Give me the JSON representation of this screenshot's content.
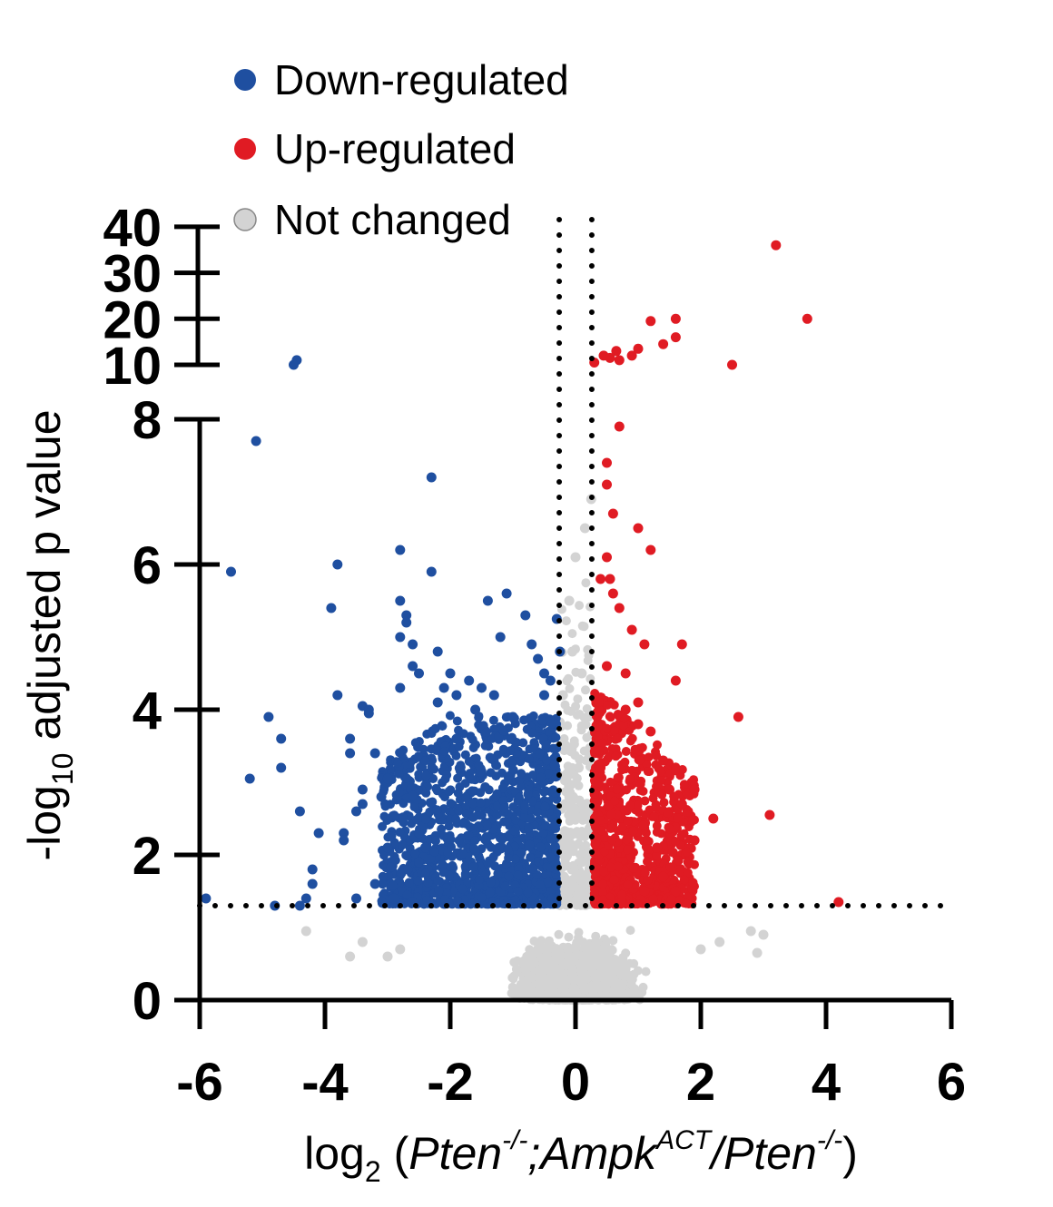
{
  "colors": {
    "down": "#1f4fa0",
    "up": "#e01b23",
    "unchanged": "#d3d3d3",
    "axis": "#000000"
  },
  "legend": {
    "down_label": "Down-regulated",
    "up_label": "Up-regulated",
    "unchanged_label": "Not changed"
  },
  "axes": {
    "ylabel_main": "-log",
    "ylabel_sub": "10",
    "ylabel_rest": " adjusted p value",
    "xlabel_log": "log",
    "xlabel_sub": "2",
    "xlabel_open": " (",
    "xlabel_pten1": "Pten",
    "xlabel_sup1": "-/-",
    "xlabel_mid": ";Ampk",
    "xlabel_sup2": "ACT",
    "xlabel_slash": "/Pten",
    "xlabel_sup3": "-/-",
    "xlabel_close": ")"
  },
  "chart_data": {
    "type": "scatter",
    "subtype": "volcano",
    "xlim": [
      -6,
      6
    ],
    "ylim_lower": [
      0,
      8
    ],
    "ylim_upper": [
      10,
      40
    ],
    "y_axis_broken": true,
    "x_ticks": [
      "-6",
      "-4",
      "-2",
      "0",
      "2",
      "4",
      "6"
    ],
    "y_ticks_lower": [
      "0",
      "2",
      "4",
      "6",
      "8"
    ],
    "y_ticks_upper": [
      "10",
      "20",
      "30",
      "40"
    ],
    "thresholds": {
      "log2fc": [
        -0.26,
        0.26
      ],
      "neglog10_padj": 1.3
    },
    "legend_position": "top",
    "series": [
      {
        "name": "Down-regulated",
        "color": "#1f4fa0",
        "points": [
          [
            -5.9,
            1.4
          ],
          [
            -5.5,
            5.9
          ],
          [
            -5.2,
            3.05
          ],
          [
            -5.1,
            7.7
          ],
          [
            -4.9,
            3.9
          ],
          [
            -4.8,
            1.3
          ],
          [
            -4.7,
            3.2
          ],
          [
            -4.7,
            3.6
          ],
          [
            -4.4,
            2.6
          ],
          [
            -4.4,
            1.3
          ],
          [
            -4.3,
            1.4
          ],
          [
            -4.2,
            1.6
          ],
          [
            -4.2,
            1.8
          ],
          [
            -4.1,
            2.3
          ],
          [
            -3.9,
            5.4
          ],
          [
            -3.8,
            6.0
          ],
          [
            -3.8,
            4.2
          ],
          [
            -3.7,
            2.3
          ],
          [
            -3.7,
            2.2
          ],
          [
            -3.6,
            3.6
          ],
          [
            -3.6,
            3.4
          ],
          [
            -3.5,
            1.4
          ],
          [
            -3.5,
            2.6
          ],
          [
            -3.4,
            2.9
          ],
          [
            -3.4,
            2.7
          ],
          [
            -3.4,
            4.05
          ],
          [
            -3.3,
            4.0
          ],
          [
            -3.3,
            3.95
          ],
          [
            -3.2,
            3.4
          ],
          [
            -3.2,
            1.6
          ],
          [
            -3.1,
            2.8
          ],
          [
            -3.0,
            3.05
          ],
          [
            -3.0,
            2.1
          ],
          [
            -2.9,
            1.4
          ],
          [
            -2.8,
            6.2
          ],
          [
            -2.8,
            5.5
          ],
          [
            -2.8,
            5.0
          ],
          [
            -2.8,
            4.3
          ],
          [
            -2.7,
            5.3
          ],
          [
            -2.7,
            5.2
          ],
          [
            -2.6,
            4.9
          ],
          [
            -2.6,
            4.6
          ],
          [
            -2.5,
            4.5
          ],
          [
            -2.5,
            2.3
          ],
          [
            -2.5,
            1.9
          ],
          [
            -2.4,
            2.1
          ],
          [
            -2.3,
            7.2
          ],
          [
            -2.3,
            5.9
          ],
          [
            -2.2,
            4.8
          ],
          [
            -2.2,
            4.1
          ],
          [
            -2.1,
            4.3
          ],
          [
            -2.0,
            4.5
          ],
          [
            -1.9,
            4.2
          ],
          [
            -1.9,
            3.6
          ],
          [
            -1.7,
            4.4
          ],
          [
            -1.6,
            4.0
          ],
          [
            -1.5,
            4.3
          ],
          [
            -1.4,
            5.5
          ],
          [
            -1.3,
            4.2
          ],
          [
            -1.2,
            5.0
          ],
          [
            -1.1,
            5.6
          ],
          [
            -1.0,
            3.9
          ],
          [
            -0.8,
            5.3
          ],
          [
            -0.7,
            4.9
          ],
          [
            -0.6,
            4.7
          ],
          [
            -0.5,
            4.5
          ],
          [
            -0.4,
            4.4
          ],
          [
            -0.5,
            4.2
          ],
          [
            -0.3,
            5.25
          ],
          [
            -0.25,
            4.8
          ],
          [
            -4.45,
            11.0
          ],
          [
            -4.5,
            10.0
          ]
        ]
      },
      {
        "name": "Up-regulated",
        "color": "#e01b23",
        "points": [
          [
            0.3,
            10.5
          ],
          [
            0.45,
            12.0
          ],
          [
            0.55,
            11.5
          ],
          [
            0.65,
            13.0
          ],
          [
            0.7,
            11.0
          ],
          [
            0.9,
            12.0
          ],
          [
            1.0,
            13.5
          ],
          [
            1.2,
            19.5
          ],
          [
            1.4,
            14.5
          ],
          [
            1.6,
            20.0
          ],
          [
            1.6,
            16.0
          ],
          [
            2.5,
            10.0
          ],
          [
            3.2,
            36.0
          ],
          [
            3.7,
            20.0
          ],
          [
            0.7,
            7.9
          ],
          [
            0.5,
            7.4
          ],
          [
            0.5,
            7.1
          ],
          [
            0.6,
            6.7
          ],
          [
            1.0,
            6.5
          ],
          [
            1.2,
            6.2
          ],
          [
            0.5,
            6.1
          ],
          [
            0.55,
            5.8
          ],
          [
            0.4,
            5.8
          ],
          [
            0.6,
            5.6
          ],
          [
            0.7,
            5.4
          ],
          [
            0.9,
            5.1
          ],
          [
            1.1,
            4.9
          ],
          [
            1.7,
            4.9
          ],
          [
            1.6,
            4.4
          ],
          [
            0.8,
            4.5
          ],
          [
            0.5,
            4.6
          ],
          [
            1.0,
            4.1
          ],
          [
            0.8,
            4.0
          ],
          [
            2.6,
            3.9
          ],
          [
            1.0,
            3.8
          ],
          [
            1.2,
            3.7
          ],
          [
            1.4,
            3.3
          ],
          [
            1.5,
            2.9
          ],
          [
            1.7,
            2.7
          ],
          [
            1.9,
            2.9
          ],
          [
            2.2,
            2.5
          ],
          [
            1.9,
            2.2
          ],
          [
            1.8,
            1.9
          ],
          [
            1.3,
            2.1
          ],
          [
            1.4,
            1.7
          ],
          [
            1.1,
            1.5
          ],
          [
            1.6,
            1.5
          ],
          [
            3.1,
            2.55
          ],
          [
            4.2,
            1.35
          ],
          [
            0.4,
            3.2
          ]
        ]
      },
      {
        "name": "Not changed",
        "color": "#d3d3d3",
        "points": [
          [
            0.0,
            6.1
          ],
          [
            0.15,
            6.5
          ],
          [
            0.25,
            6.9
          ],
          [
            -0.1,
            5.5
          ],
          [
            -0.05,
            4.8
          ],
          [
            0.1,
            4.5
          ],
          [
            -0.2,
            4.2
          ],
          [
            0.2,
            3.9
          ],
          [
            -0.15,
            3.5
          ],
          [
            0.05,
            3.2
          ],
          [
            -0.1,
            2.8
          ],
          [
            0.15,
            2.5
          ],
          [
            -0.2,
            2.2
          ],
          [
            0.1,
            1.9
          ],
          [
            -0.05,
            1.6
          ],
          [
            0.2,
            1.45
          ],
          [
            -4.3,
            0.95
          ],
          [
            -3.4,
            0.8
          ],
          [
            -2.8,
            0.7
          ],
          [
            -3.0,
            0.6
          ],
          [
            -3.6,
            0.6
          ],
          [
            2.8,
            0.95
          ],
          [
            3.0,
            0.9
          ],
          [
            2.9,
            0.65
          ],
          [
            2.3,
            0.8
          ],
          [
            2.0,
            0.7
          ]
        ]
      }
    ]
  }
}
